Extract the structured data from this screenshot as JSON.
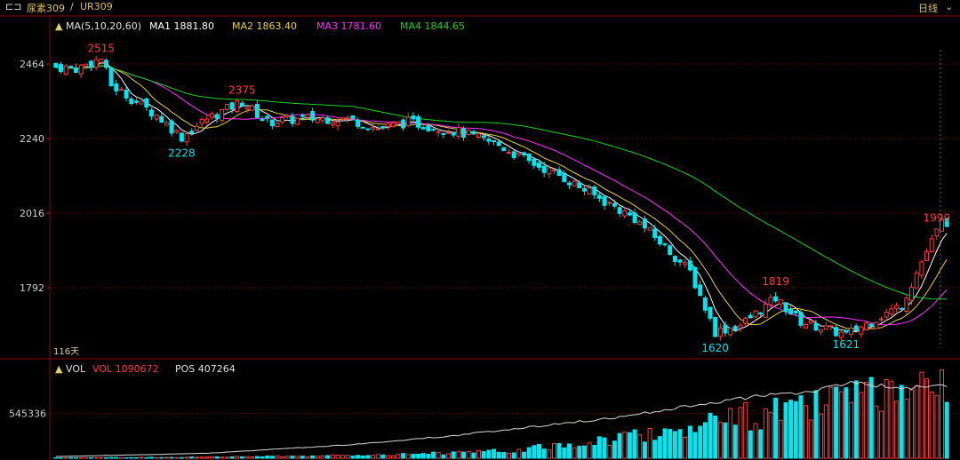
{
  "header": {
    "symbol_name": "尿素309",
    "separator": "/",
    "symbol_code": "UR309",
    "period": "日线"
  },
  "legend": {
    "ma_title": "MA(5,10,20,60)",
    "ma1": "MA1 1881.80",
    "ma2": "MA2 1863.40",
    "ma3": "MA3 1781.60",
    "ma4": "MA4 1844.65",
    "vol_title": "VOL",
    "vol": "VOL 1090672",
    "pos": "POS 407264"
  },
  "colors": {
    "up": "#ff3b3b",
    "down": "#00e5ee",
    "ma1": "#ffffff",
    "ma2": "#e8d040",
    "ma3": "#ff30ff",
    "ma4": "#20d020",
    "grid": "#7a0000"
  },
  "chart_data": {
    "type": "candlestick",
    "price_axis_ticks": [
      2464,
      2240,
      2016,
      1792
    ],
    "volume_axis_ticks": [
      545336
    ],
    "days_label": "116天",
    "annotations": [
      {
        "text": "2515",
        "kind": "high",
        "index": 9
      },
      {
        "text": "2228",
        "kind": "low",
        "index": 25
      },
      {
        "text": "2375",
        "kind": "high",
        "index": 37
      },
      {
        "text": "1620",
        "kind": "low",
        "index": 131
      },
      {
        "text": "1819",
        "kind": "high",
        "index": 143
      },
      {
        "text": "1621",
        "kind": "low",
        "index": 157
      },
      {
        "text": "1999",
        "kind": "high",
        "index": 175
      }
    ],
    "anchors": [
      [
        0,
        2455
      ],
      [
        4,
        2450
      ],
      [
        9,
        2480
      ],
      [
        11,
        2400
      ],
      [
        15,
        2360
      ],
      [
        20,
        2310
      ],
      [
        25,
        2245
      ],
      [
        30,
        2300
      ],
      [
        37,
        2350
      ],
      [
        42,
        2290
      ],
      [
        50,
        2300
      ],
      [
        58,
        2300
      ],
      [
        64,
        2270
      ],
      [
        70,
        2290
      ],
      [
        80,
        2260
      ],
      [
        88,
        2220
      ],
      [
        94,
        2170
      ],
      [
        100,
        2130
      ],
      [
        108,
        2060
      ],
      [
        115,
        2000
      ],
      [
        120,
        1930
      ],
      [
        126,
        1840
      ],
      [
        131,
        1660
      ],
      [
        136,
        1680
      ],
      [
        143,
        1760
      ],
      [
        148,
        1690
      ],
      [
        157,
        1650
      ],
      [
        163,
        1700
      ],
      [
        168,
        1740
      ],
      [
        172,
        1870
      ],
      [
        176,
        1990
      ]
    ],
    "volume_anchors": [
      [
        0,
        5000
      ],
      [
        30,
        15000
      ],
      [
        60,
        40000
      ],
      [
        90,
        100000
      ],
      [
        105,
        220000
      ],
      [
        115,
        330000
      ],
      [
        122,
        380000
      ],
      [
        130,
        520000
      ],
      [
        140,
        620000
      ],
      [
        150,
        720000
      ],
      [
        160,
        880000
      ],
      [
        168,
        820000
      ],
      [
        175,
        1000000
      ],
      [
        177,
        1090672
      ]
    ],
    "pos_anchors": [
      [
        0,
        20000
      ],
      [
        30,
        60000
      ],
      [
        60,
        170000
      ],
      [
        80,
        280000
      ],
      [
        100,
        420000
      ],
      [
        110,
        480000
      ],
      [
        120,
        580000
      ],
      [
        140,
        760000
      ],
      [
        150,
        800000
      ],
      [
        158,
        930000
      ],
      [
        166,
        860000
      ],
      [
        172,
        860000
      ],
      [
        175,
        880000
      ],
      [
        177,
        880000
      ]
    ]
  }
}
